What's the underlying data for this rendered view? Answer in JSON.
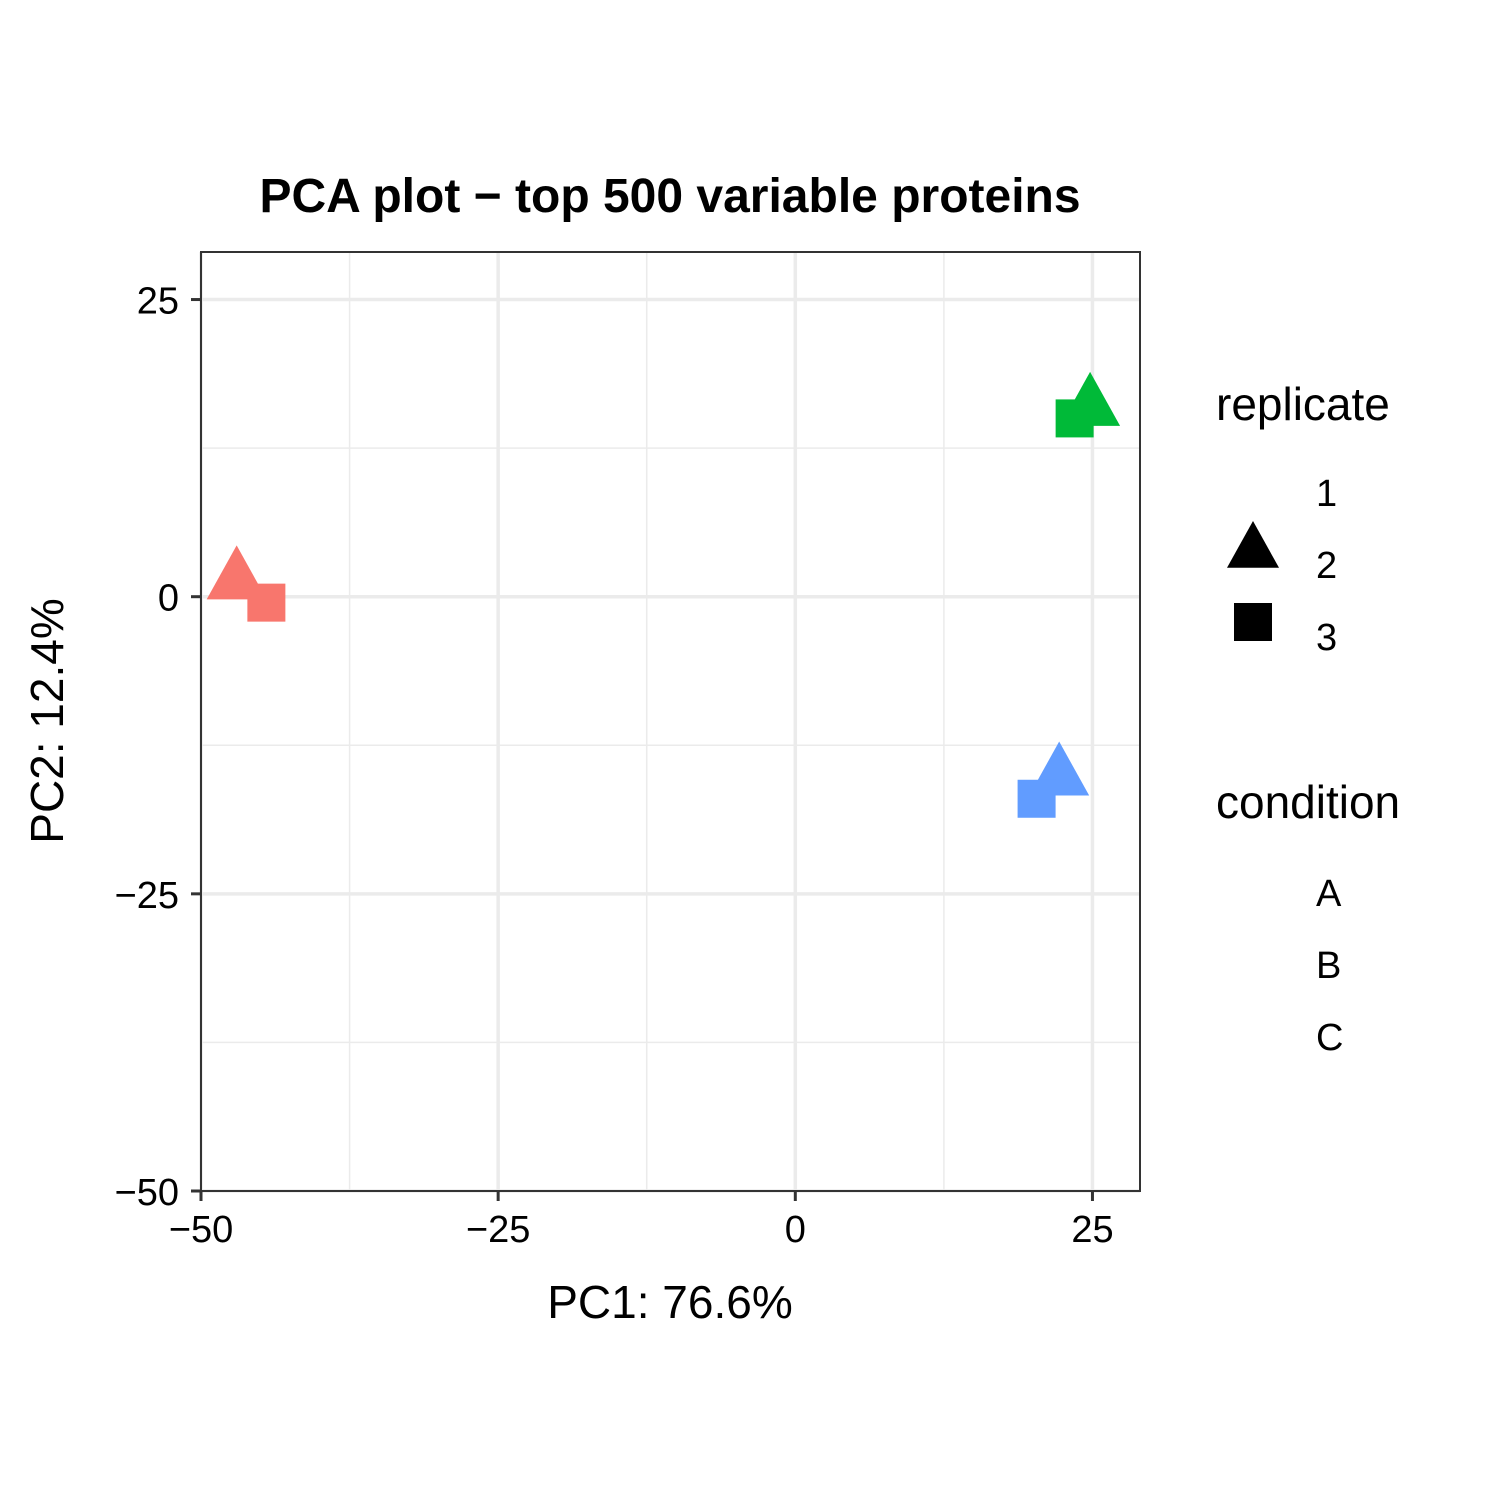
{
  "chart_data": {
    "type": "scatter",
    "title": "PCA plot − top 500 variable proteins",
    "xlabel": "PC1: 76.6%",
    "ylabel": "PC2: 12.4%",
    "xlim": [
      -50,
      29
    ],
    "ylim": [
      -50,
      29
    ],
    "x_ticks": [
      -50,
      -25,
      0,
      25
    ],
    "x_tick_labels": [
      "−50",
      "−25",
      "0",
      "25"
    ],
    "y_ticks": [
      -50,
      -25,
      0,
      25
    ],
    "y_tick_labels": [
      "−50",
      "−25",
      "0",
      "25"
    ],
    "x_minor_gridlines": [
      -37.5,
      -12.5,
      12.5
    ],
    "y_minor_gridlines": [
      -37.5,
      -12.5,
      12.5
    ],
    "grid": true,
    "legend_position": "right",
    "points": [
      {
        "condition": "A",
        "replicate": "1",
        "x": -44.5,
        "y": -0.5
      },
      {
        "condition": "A",
        "replicate": "2",
        "x": -47.0,
        "y": 1.5
      },
      {
        "condition": "A",
        "replicate": "3",
        "x": -44.5,
        "y": -0.5
      },
      {
        "condition": "B",
        "replicate": "1",
        "x": 23.5,
        "y": 15.0
      },
      {
        "condition": "B",
        "replicate": "2",
        "x": 24.8,
        "y": 16.1
      },
      {
        "condition": "B",
        "replicate": "3",
        "x": 23.5,
        "y": 15.0
      },
      {
        "condition": "C",
        "replicate": "1",
        "x": 20.3,
        "y": -17.0
      },
      {
        "condition": "C",
        "replicate": "2",
        "x": 22.2,
        "y": -15.0
      },
      {
        "condition": "C",
        "replicate": "3",
        "x": 20.3,
        "y": -17.0
      }
    ],
    "legend": {
      "replicate": {
        "title": "replicate",
        "entries": [
          {
            "label": "1",
            "shape": "none"
          },
          {
            "label": "2",
            "shape": "triangle"
          },
          {
            "label": "3",
            "shape": "square"
          }
        ]
      },
      "condition": {
        "title": "condition",
        "entries": [
          {
            "label": "A",
            "color": "#F8766D"
          },
          {
            "label": "B",
            "color": "#00BA38"
          },
          {
            "label": "C",
            "color": "#619CFF"
          }
        ]
      }
    },
    "colors": {
      "A": "#F8766D",
      "B": "#00BA38",
      "C": "#619CFF"
    }
  }
}
